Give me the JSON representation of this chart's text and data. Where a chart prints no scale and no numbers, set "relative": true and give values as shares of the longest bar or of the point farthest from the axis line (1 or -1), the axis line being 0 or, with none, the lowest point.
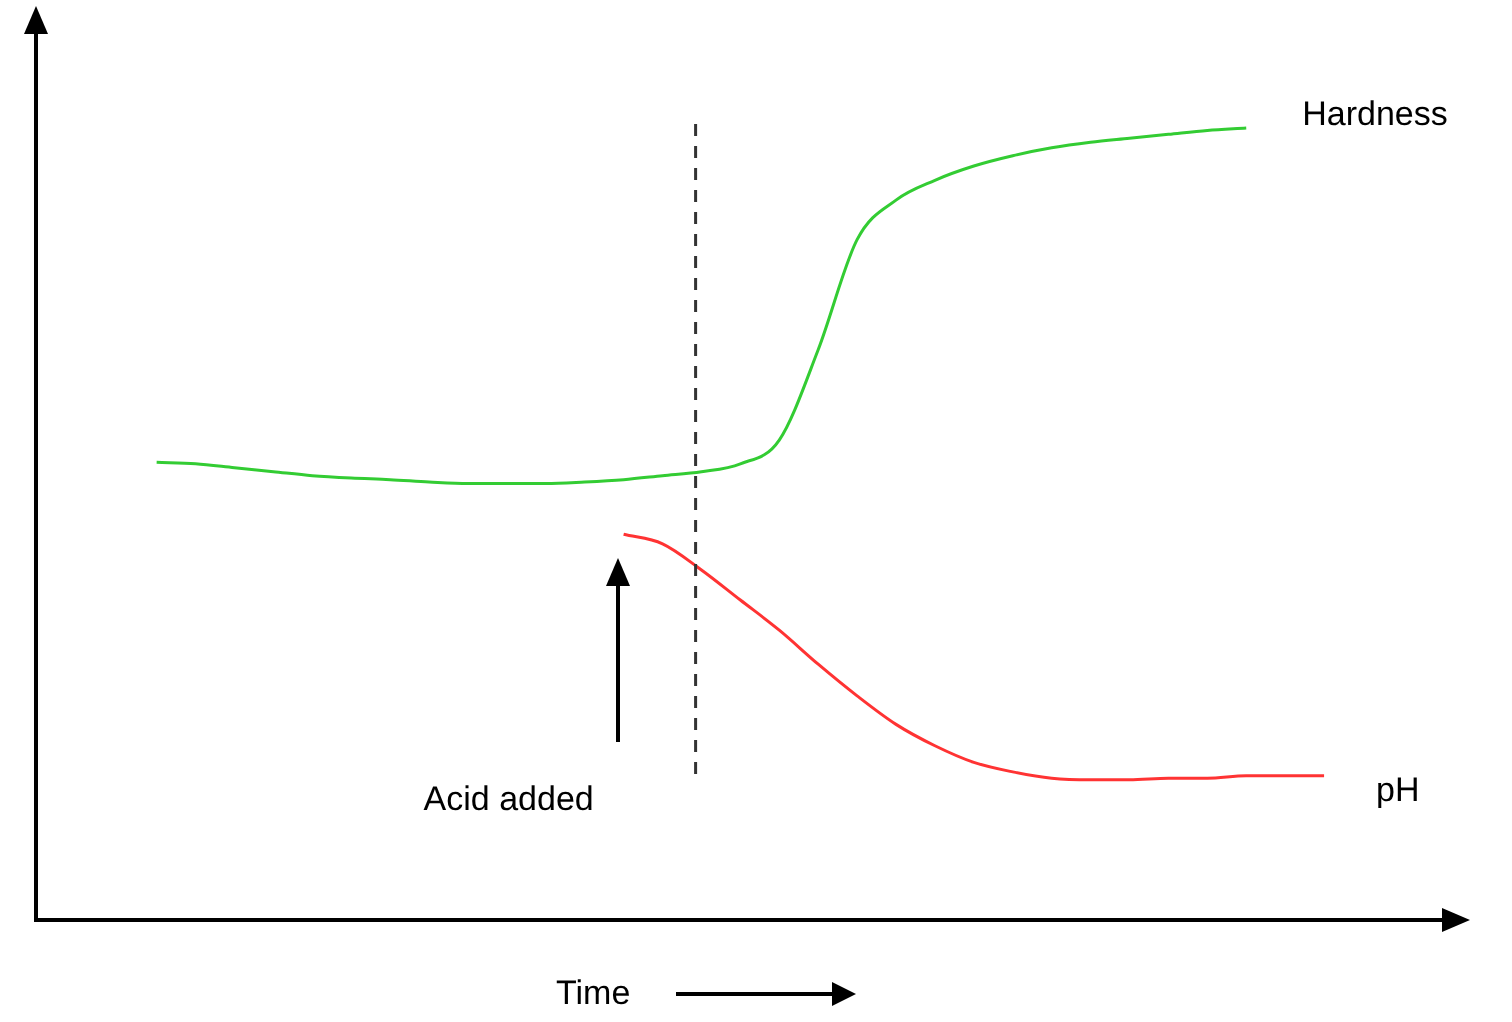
{
  "chart_data": {
    "type": "line",
    "relative": true,
    "xlabel": "Time",
    "categories": [
      null,
      null,
      null,
      null,
      null,
      null,
      null,
      null,
      null,
      null,
      null,
      null,
      null,
      null,
      null,
      null,
      null,
      null,
      null,
      null,
      null,
      null,
      null,
      null,
      null,
      null,
      null,
      null,
      null,
      null,
      null
    ],
    "series": [
      {
        "name": "Hardness",
        "color": "#33cc33",
        "values": [
          0.578,
          0.576,
          0.571,
          0.566,
          0.561,
          0.558,
          0.556,
          0.553,
          0.551,
          0.551,
          0.551,
          0.553,
          0.556,
          0.561,
          0.566,
          0.576,
          0.606,
          0.72,
          0.859,
          0.909,
          0.934,
          0.952,
          0.965,
          0.975,
          0.982,
          0.987,
          0.992,
          0.997,
          1,
          null,
          null
        ]
      },
      {
        "name": "pH",
        "color": "#ff3333",
        "values": [
          null,
          null,
          null,
          null,
          null,
          null,
          null,
          null,
          null,
          null,
          null,
          null,
          0.487,
          0.475,
          0.442,
          0.404,
          0.366,
          0.323,
          0.283,
          0.247,
          0.22,
          0.199,
          0.187,
          0.179,
          0.177,
          0.177,
          0.179,
          0.179,
          0.182,
          0.182,
          0.182
        ]
      }
    ],
    "annotations": [
      "Acid added"
    ],
    "marker": "none",
    "grid": false,
    "legend": false
  }
}
